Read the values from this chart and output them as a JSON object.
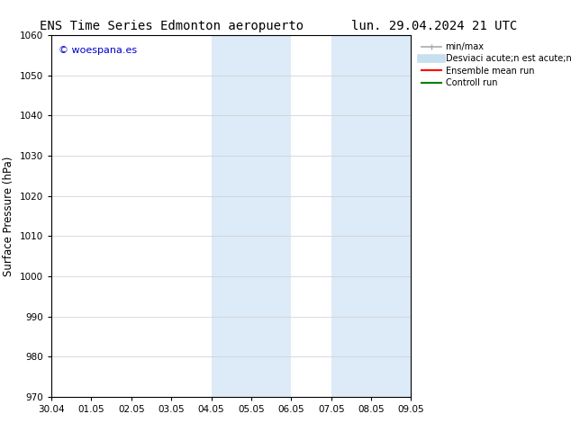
{
  "title_left": "ENS Time Series Edmonton aeropuerto",
  "title_right": "lun. 29.04.2024 21 UTC",
  "ylabel": "Surface Pressure (hPa)",
  "xlim_dates": [
    "30.04",
    "01.05",
    "02.05",
    "03.05",
    "04.05",
    "05.05",
    "06.05",
    "07.05",
    "08.05",
    "09.05"
  ],
  "ylim": [
    970,
    1060
  ],
  "yticks": [
    970,
    980,
    990,
    1000,
    1010,
    1020,
    1030,
    1040,
    1050,
    1060
  ],
  "shaded_regions": [
    {
      "xstart": 4.0,
      "xend": 5.0,
      "color": "#ddeaf7"
    },
    {
      "xstart": 5.0,
      "xend": 6.0,
      "color": "#ddeaf7"
    },
    {
      "xstart": 7.0,
      "xend": 8.0,
      "color": "#ddeaf7"
    },
    {
      "xstart": 8.0,
      "xend": 9.0,
      "color": "#ddeaf7"
    }
  ],
  "watermark_text": "© woespana.es",
  "watermark_color": "#0000cc",
  "legend_items": [
    {
      "label": "min/max",
      "color": "#aaaaaa",
      "lw": 1.2
    },
    {
      "label": "Desviaci acute;n est acute;ndar",
      "color": "#c8dff0",
      "lw": 7
    },
    {
      "label": "Ensemble mean run",
      "color": "red",
      "lw": 1.5
    },
    {
      "label": "Controll run",
      "color": "green",
      "lw": 1.5
    }
  ],
  "background_color": "#ffffff",
  "grid_color": "#cccccc",
  "title_fontsize": 10,
  "tick_fontsize": 7.5,
  "ylabel_fontsize": 8.5,
  "watermark_fontsize": 8
}
